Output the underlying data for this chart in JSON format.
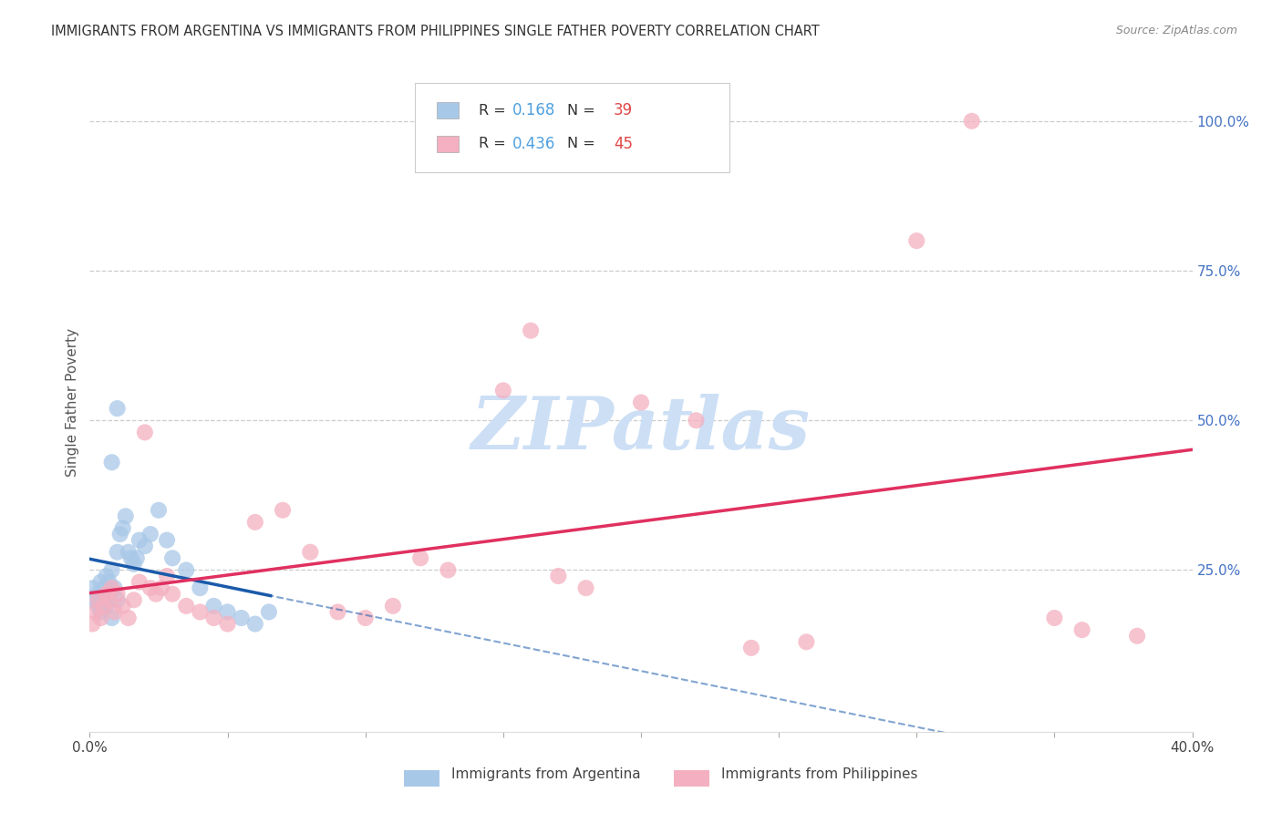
{
  "title": "IMMIGRANTS FROM ARGENTINA VS IMMIGRANTS FROM PHILIPPINES SINGLE FATHER POVERTY CORRELATION CHART",
  "source": "Source: ZipAtlas.com",
  "ylabel": "Single Father Poverty",
  "yaxis_labels": [
    "100.0%",
    "75.0%",
    "50.0%",
    "25.0%"
  ],
  "yaxis_values": [
    1.0,
    0.75,
    0.5,
    0.25
  ],
  "xlim": [
    0.0,
    0.4
  ],
  "ylim_low": -0.02,
  "ylim_high": 1.08,
  "legend_label1": "Immigrants from Argentina",
  "legend_label2": "Immigrants from Philippines",
  "argentina_fill_color": "#a8c8e8",
  "philippines_fill_color": "#f4b0c0",
  "argentina_line_color": "#1a5aaa",
  "philippines_line_color": "#e03060",
  "watermark_text": "ZIPatlas",
  "watermark_color": "#ccdff5",
  "r1_val": "0.168",
  "n1_val": "39",
  "r2_val": "0.436",
  "n2_val": "45",
  "argentina_x": [
    0.001,
    0.002,
    0.003,
    0.003,
    0.004,
    0.004,
    0.005,
    0.005,
    0.006,
    0.006,
    0.007,
    0.007,
    0.008,
    0.008,
    0.009,
    0.01,
    0.01,
    0.011,
    0.012,
    0.013,
    0.014,
    0.015,
    0.016,
    0.017,
    0.018,
    0.02,
    0.022,
    0.025,
    0.028,
    0.03,
    0.035,
    0.04,
    0.045,
    0.05,
    0.055,
    0.06,
    0.065,
    0.01,
    0.008
  ],
  "argentina_y": [
    0.22,
    0.2,
    0.19,
    0.21,
    0.18,
    0.23,
    0.2,
    0.22,
    0.19,
    0.24,
    0.21,
    0.23,
    0.17,
    0.25,
    0.22,
    0.2,
    0.28,
    0.31,
    0.32,
    0.34,
    0.28,
    0.27,
    0.26,
    0.27,
    0.3,
    0.29,
    0.31,
    0.35,
    0.3,
    0.27,
    0.25,
    0.22,
    0.19,
    0.18,
    0.17,
    0.16,
    0.18,
    0.52,
    0.43
  ],
  "philippines_x": [
    0.001,
    0.002,
    0.003,
    0.004,
    0.005,
    0.006,
    0.007,
    0.008,
    0.009,
    0.01,
    0.012,
    0.014,
    0.016,
    0.018,
    0.02,
    0.022,
    0.024,
    0.026,
    0.028,
    0.03,
    0.035,
    0.04,
    0.045,
    0.05,
    0.06,
    0.07,
    0.08,
    0.09,
    0.1,
    0.11,
    0.12,
    0.13,
    0.15,
    0.16,
    0.17,
    0.18,
    0.2,
    0.22,
    0.24,
    0.26,
    0.3,
    0.32,
    0.35,
    0.36,
    0.38
  ],
  "philippines_y": [
    0.16,
    0.18,
    0.2,
    0.17,
    0.19,
    0.21,
    0.2,
    0.22,
    0.18,
    0.21,
    0.19,
    0.17,
    0.2,
    0.23,
    0.48,
    0.22,
    0.21,
    0.22,
    0.24,
    0.21,
    0.19,
    0.18,
    0.17,
    0.16,
    0.33,
    0.35,
    0.28,
    0.18,
    0.17,
    0.19,
    0.27,
    0.25,
    0.55,
    0.65,
    0.24,
    0.22,
    0.53,
    0.5,
    0.12,
    0.13,
    0.8,
    1.0,
    0.17,
    0.15,
    0.14
  ]
}
